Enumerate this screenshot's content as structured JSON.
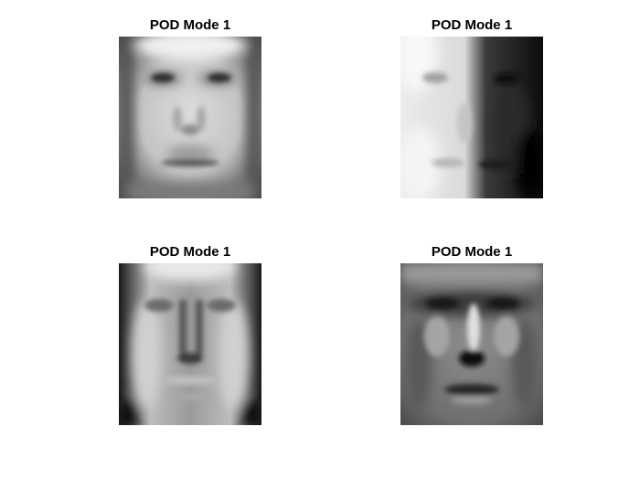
{
  "figure": {
    "panels": [
      {
        "title": "POD Mode 1"
      },
      {
        "title": "POD Mode 1"
      },
      {
        "title": "POD Mode 1"
      },
      {
        "title": "POD Mode 1"
      }
    ]
  }
}
